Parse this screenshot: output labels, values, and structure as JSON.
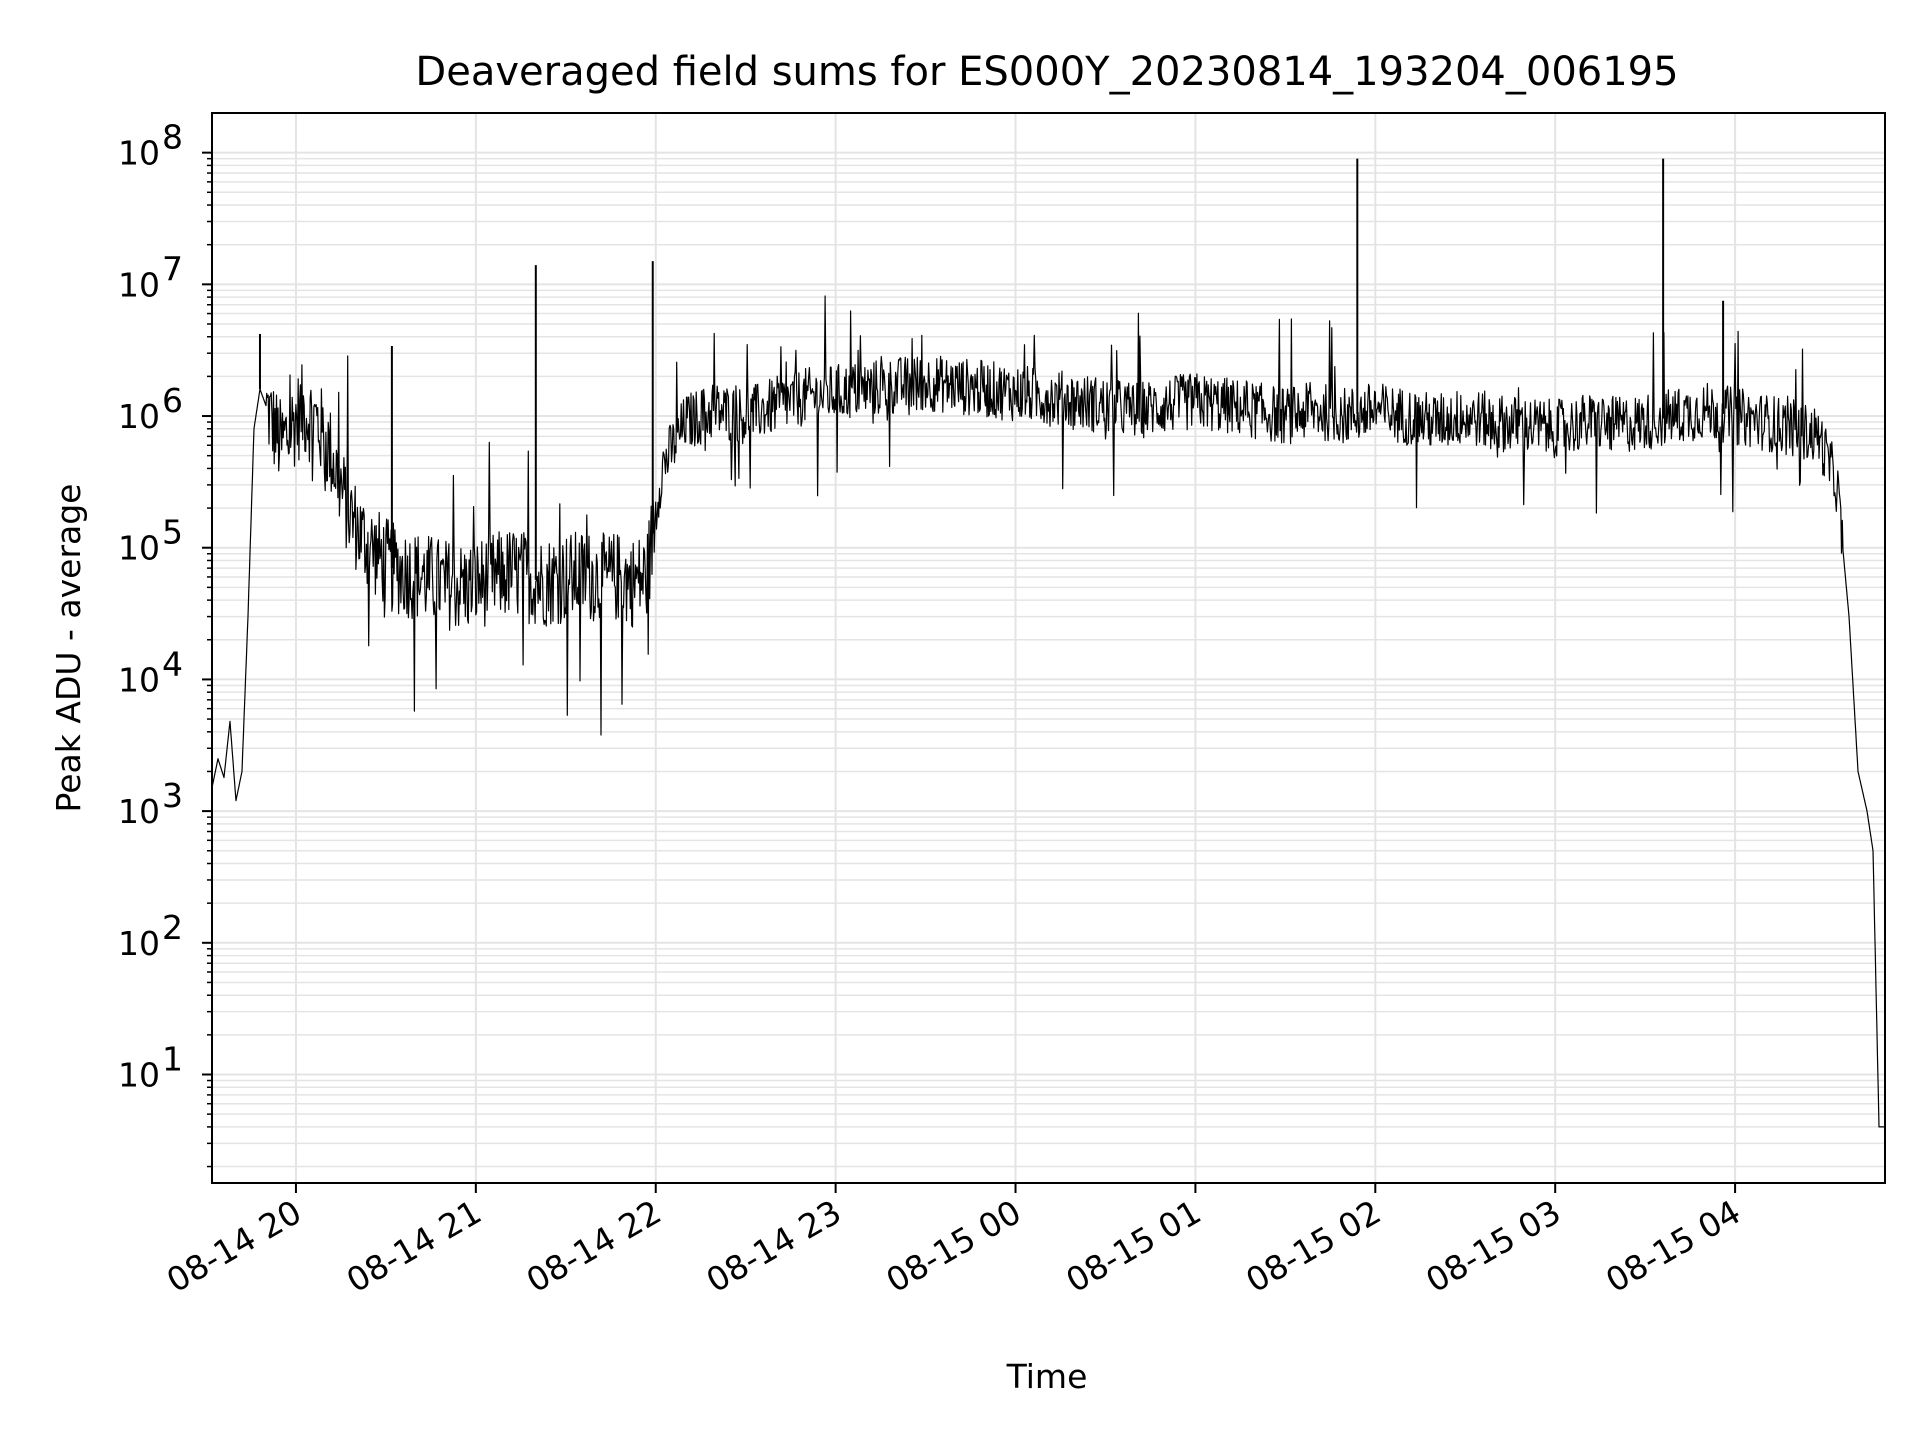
{
  "chart_data": {
    "type": "line",
    "title": "Deaveraged field sums for ES000Y_20230814_193204_006195",
    "xlabel": "Time",
    "ylabel": "Peak ADU - average",
    "yscale": "log",
    "ylim": [
      1.5,
      200000000
    ],
    "xlim": [
      "2023-08-14 19:32",
      "2023-08-15 04:50"
    ],
    "grid": true,
    "line_color": "#000000",
    "grid_color": "#e4e4e4",
    "x_ticks": [
      "08-14 20",
      "08-14 21",
      "08-14 22",
      "08-14 23",
      "08-15 00",
      "08-15 01",
      "08-15 02",
      "08-15 03",
      "08-15 04"
    ],
    "y_ticks": [
      {
        "base": "10",
        "exp": "1",
        "value": 10
      },
      {
        "base": "10",
        "exp": "2",
        "value": 100
      },
      {
        "base": "10",
        "exp": "3",
        "value": 1000
      },
      {
        "base": "10",
        "exp": "4",
        "value": 10000
      },
      {
        "base": "10",
        "exp": "5",
        "value": 100000
      },
      {
        "base": "10",
        "exp": "6",
        "value": 1000000
      },
      {
        "base": "10",
        "exp": "7",
        "value": 10000000
      },
      {
        "base": "10",
        "exp": "8",
        "value": 100000000
      }
    ],
    "series": [
      {
        "x": [
          "2023-08-14 19:32",
          "2023-08-14 19:34",
          "2023-08-14 19:36",
          "2023-08-14 19:38",
          "2023-08-14 19:40",
          "2023-08-14 19:42",
          "2023-08-14 19:44",
          "2023-08-14 19:46",
          "2023-08-14 19:48",
          "2023-08-14 19:50",
          "2023-08-14 19:52",
          "2023-08-14 19:55",
          "2023-08-14 19:58",
          "2023-08-14 20:02",
          "2023-08-14 20:07",
          "2023-08-14 20:12",
          "2023-08-14 20:17",
          "2023-08-14 20:22",
          "2023-08-14 20:27",
          "2023-08-14 20:32",
          "2023-08-14 20:37",
          "2023-08-14 20:42",
          "2023-08-14 20:47",
          "2023-08-14 20:52",
          "2023-08-14 20:57",
          "2023-08-14 21:02",
          "2023-08-14 21:07",
          "2023-08-14 21:12",
          "2023-08-14 21:17",
          "2023-08-14 21:22",
          "2023-08-14 21:27",
          "2023-08-14 21:32",
          "2023-08-14 21:37",
          "2023-08-14 21:42",
          "2023-08-14 21:47",
          "2023-08-14 21:52",
          "2023-08-14 21:57",
          "2023-08-14 22:02",
          "2023-08-14 22:10",
          "2023-08-14 22:20",
          "2023-08-14 22:30",
          "2023-08-14 22:40",
          "2023-08-14 22:50",
          "2023-08-14 23:00",
          "2023-08-14 23:10",
          "2023-08-14 23:20",
          "2023-08-14 23:30",
          "2023-08-14 23:40",
          "2023-08-14 23:50",
          "2023-08-15 00:00",
          "2023-08-15 00:10",
          "2023-08-15 00:20",
          "2023-08-15 00:30",
          "2023-08-15 00:40",
          "2023-08-15 00:50",
          "2023-08-15 01:00",
          "2023-08-15 01:10",
          "2023-08-15 01:20",
          "2023-08-15 01:30",
          "2023-08-15 01:40",
          "2023-08-15 01:50",
          "2023-08-15 02:00",
          "2023-08-15 02:10",
          "2023-08-15 02:20",
          "2023-08-15 02:30",
          "2023-08-15 02:40",
          "2023-08-15 02:50",
          "2023-08-15 03:00",
          "2023-08-15 03:10",
          "2023-08-15 03:20",
          "2023-08-15 03:30",
          "2023-08-15 03:40",
          "2023-08-15 03:50",
          "2023-08-15 04:00",
          "2023-08-15 04:10",
          "2023-08-15 04:20",
          "2023-08-15 04:28",
          "2023-08-15 04:34",
          "2023-08-15 04:38",
          "2023-08-15 04:41",
          "2023-08-15 04:44",
          "2023-08-15 04:46",
          "2023-08-15 04:48",
          "2023-08-15 04:50"
        ],
        "y": [
          1500,
          2500,
          1800,
          4800,
          1200,
          2000,
          30000,
          800000,
          1600000,
          1200000,
          900000,
          600000,
          800000,
          1100000,
          900000,
          500000,
          200000,
          120000,
          90000,
          70000,
          65000,
          60000,
          55000,
          52000,
          50000,
          55000,
          60000,
          65000,
          60000,
          55000,
          58000,
          60000,
          62000,
          58000,
          60000,
          55000,
          60000,
          400000,
          900000,
          1100000,
          1000000,
          1200000,
          1400000,
          1500000,
          1600000,
          1700000,
          1800000,
          1700000,
          1600000,
          1500000,
          1400000,
          1300000,
          1200000,
          1100000,
          1200000,
          1300000,
          1200000,
          1100000,
          1000000,
          1100000,
          1000000,
          1100000,
          1000000,
          900000,
          1000000,
          900000,
          850000,
          800000,
          900000,
          850000,
          900000,
          1000000,
          1100000,
          1000000,
          900000,
          800000,
          700000,
          300000,
          30000,
          2000,
          1000,
          500,
          4,
          4
        ],
        "spikes": [
          {
            "x": "2023-08-14 19:48",
            "y": 4200000
          },
          {
            "x": "2023-08-14 20:32",
            "y": 3400000
          },
          {
            "x": "2023-08-14 21:20",
            "y": 14000000
          },
          {
            "x": "2023-08-14 21:59",
            "y": 15000000
          },
          {
            "x": "2023-08-15 01:54",
            "y": 90000000
          },
          {
            "x": "2023-08-15 03:36",
            "y": 90000000
          },
          {
            "x": "2023-08-15 03:56",
            "y": 7500000
          }
        ]
      }
    ]
  }
}
